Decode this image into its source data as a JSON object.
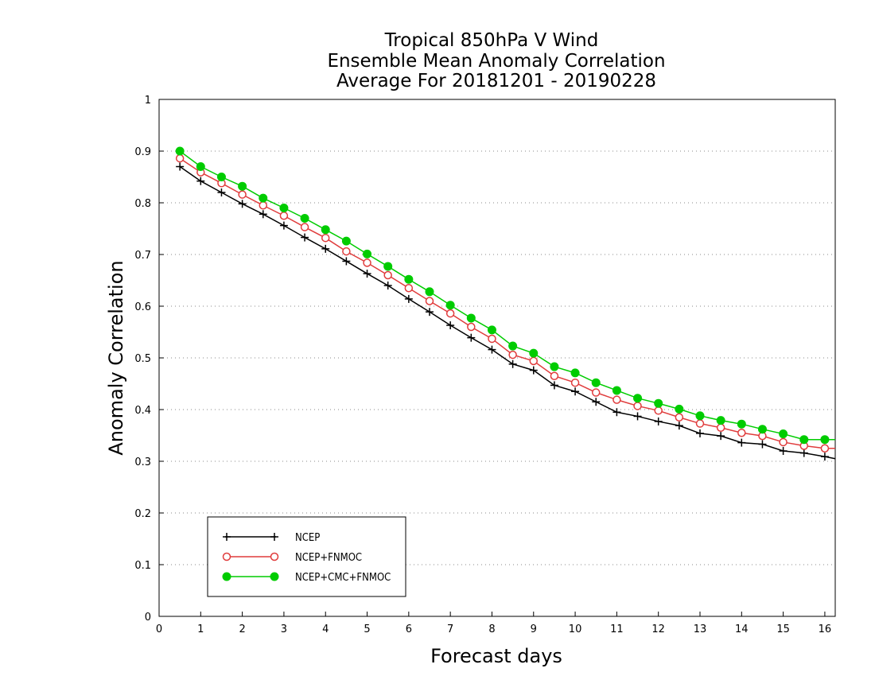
{
  "chart_data": {
    "type": "line",
    "title": [
      "Tropical 850hPa V Wind",
      "Ensemble Mean Anomaly Correlation",
      "Average For 20181201 - 20190228"
    ],
    "xlabel": "Forecast days",
    "ylabel": "Anomaly Correlation",
    "xlim": [
      0,
      16.25
    ],
    "ylim": [
      0,
      1
    ],
    "x_ticks": [
      "0",
      "1",
      "2",
      "3",
      "4",
      "5",
      "6",
      "7",
      "8",
      "9",
      "10",
      "11",
      "12",
      "13",
      "14",
      "15",
      "16"
    ],
    "y_ticks": [
      "0",
      "0.1",
      "0.2",
      "0.3",
      "0.4",
      "0.5",
      "0.6",
      "0.7",
      "0.8",
      "0.9",
      "1"
    ],
    "grid": "horizontal dotted",
    "legend_position": "bottom-left",
    "x": [
      0.5,
      1,
      1.5,
      2,
      2.5,
      3,
      3.5,
      4,
      4.5,
      5,
      5.5,
      6,
      6.5,
      7,
      7.5,
      8,
      8.5,
      9,
      9.5,
      10,
      10.5,
      11,
      11.5,
      12,
      12.5,
      13,
      13.5,
      14,
      14.5,
      15,
      15.5,
      16,
      16.25
    ],
    "series": [
      {
        "name": "NCEP",
        "color": "#000000",
        "marker": "plus",
        "values": [
          0.87,
          0.842,
          0.82,
          0.798,
          0.778,
          0.756,
          0.733,
          0.711,
          0.687,
          0.663,
          0.64,
          0.614,
          0.589,
          0.563,
          0.539,
          0.516,
          0.488,
          0.476,
          0.447,
          0.435,
          0.415,
          0.395,
          0.387,
          0.377,
          0.369,
          0.354,
          0.349,
          0.336,
          0.333,
          0.32,
          0.316,
          0.309,
          0.305
        ]
      },
      {
        "name": "NCEP+FNMOC",
        "color": "#e03c3c",
        "marker": "open-circle",
        "values": [
          0.886,
          0.859,
          0.838,
          0.816,
          0.795,
          0.775,
          0.753,
          0.732,
          0.706,
          0.684,
          0.66,
          0.635,
          0.61,
          0.586,
          0.56,
          0.537,
          0.506,
          0.494,
          0.465,
          0.452,
          0.433,
          0.419,
          0.407,
          0.398,
          0.385,
          0.373,
          0.365,
          0.355,
          0.349,
          0.337,
          0.33,
          0.325,
          0.325
        ]
      },
      {
        "name": "NCEP+CMC+FNMOC",
        "color": "#00cc00",
        "marker": "filled-circle",
        "values": [
          0.9,
          0.87,
          0.85,
          0.832,
          0.809,
          0.79,
          0.77,
          0.748,
          0.726,
          0.701,
          0.677,
          0.652,
          0.628,
          0.602,
          0.577,
          0.554,
          0.523,
          0.509,
          0.483,
          0.471,
          0.452,
          0.437,
          0.422,
          0.412,
          0.401,
          0.388,
          0.379,
          0.372,
          0.362,
          0.353,
          0.342,
          0.342,
          0.342
        ]
      }
    ]
  }
}
